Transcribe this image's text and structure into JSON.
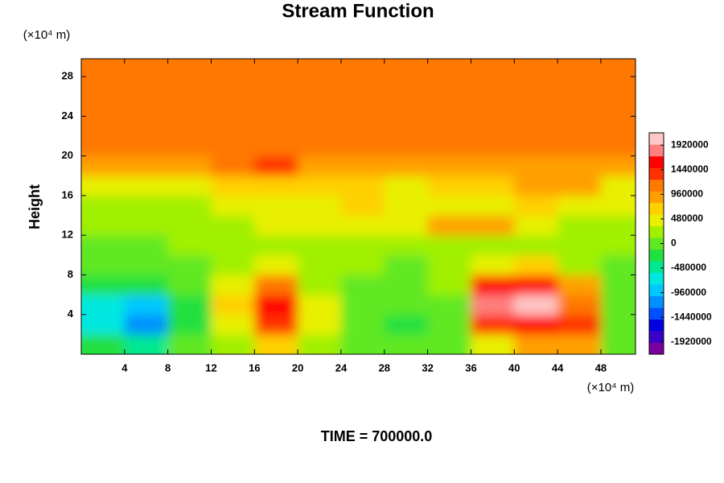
{
  "chart_data": {
    "type": "contour",
    "title": "Stream Function",
    "ylabel": "Height",
    "yunit": "(×10⁴ m)",
    "xunit": "(×10⁴ m)",
    "footer": "TIME = 700000.0",
    "xlim": [
      0,
      51.2
    ],
    "ylim": [
      0,
      29.8
    ],
    "xticks": [
      4,
      8,
      12,
      16,
      20,
      24,
      28,
      32,
      36,
      40,
      44,
      48
    ],
    "yticks": [
      4,
      8,
      12,
      16,
      20,
      24,
      28
    ],
    "x": [
      2,
      6,
      10,
      14,
      18,
      22,
      26,
      30,
      34,
      38,
      42,
      46,
      50
    ],
    "y": [
      1,
      3,
      5,
      7,
      9,
      11,
      13,
      15,
      17,
      19,
      21,
      23,
      25,
      27,
      29
    ],
    "z": [
      [
        -300000,
        -500000,
        -100000,
        200000,
        600000,
        200000,
        100000,
        -100000,
        100000,
        500000,
        800000,
        900000,
        100000
      ],
      [
        -700000,
        -1100000,
        -300000,
        500000,
        1400000,
        400000,
        100000,
        -200000,
        0,
        1300000,
        1700000,
        1400000,
        0
      ],
      [
        -600000,
        -1000000,
        -200000,
        600000,
        1500000,
        400000,
        0,
        -100000,
        100000,
        1800000,
        2000000,
        1200000,
        -100000
      ],
      [
        -200000,
        -300000,
        0,
        500000,
        1200000,
        300000,
        100000,
        0,
        300000,
        1500000,
        1600000,
        900000,
        0
      ],
      [
        0,
        0,
        100000,
        300000,
        500000,
        200000,
        200000,
        100000,
        200000,
        500000,
        600000,
        300000,
        100000
      ],
      [
        100000,
        100000,
        200000,
        200000,
        300000,
        300000,
        300000,
        200000,
        300000,
        300000,
        300000,
        200000,
        200000
      ],
      [
        200000,
        200000,
        300000,
        300000,
        400000,
        400000,
        400000,
        500000,
        800000,
        1000000,
        500000,
        300000,
        300000
      ],
      [
        300000,
        300000,
        200000,
        400000,
        500000,
        500000,
        600000,
        400000,
        400000,
        500000,
        600000,
        500000,
        400000
      ],
      [
        500000,
        400000,
        400000,
        600000,
        700000,
        700000,
        600000,
        500000,
        600000,
        700000,
        900000,
        800000,
        500000
      ],
      [
        800000,
        800000,
        800000,
        1100000,
        1300000,
        1000000,
        800000,
        800000,
        800000,
        800000,
        900000,
        900000,
        800000
      ],
      [
        1150000,
        1150000,
        1150000,
        1150000,
        1150000,
        1150000,
        1150000,
        1150000,
        1150000,
        1150000,
        1150000,
        1150000,
        1150000
      ],
      [
        1150000,
        1150000,
        1150000,
        1150000,
        1150000,
        1150000,
        1150000,
        1150000,
        1150000,
        1150000,
        1150000,
        1150000,
        1150000
      ],
      [
        1150000,
        1150000,
        1150000,
        1150000,
        1150000,
        1150000,
        1150000,
        1150000,
        1150000,
        1150000,
        1150000,
        1150000,
        1150000
      ],
      [
        1150000,
        1150000,
        1150000,
        1150000,
        1150000,
        1150000,
        1150000,
        1150000,
        1150000,
        1150000,
        1150000,
        1150000,
        1150000
      ],
      [
        1150000,
        1150000,
        1150000,
        1150000,
        1150000,
        1150000,
        1150000,
        1150000,
        1150000,
        1150000,
        1150000,
        1150000,
        1150000
      ]
    ],
    "zlim": [
      -2160000,
      2160000
    ],
    "zticks": [
      -1920000,
      -1440000,
      -960000,
      -480000,
      0,
      480000,
      960000,
      1440000,
      1920000
    ],
    "colors": [
      "#7a00a0",
      "#3a00c8",
      "#0000e0",
      "#0050ff",
      "#0090ff",
      "#00c8ff",
      "#00e8e0",
      "#00e890",
      "#20e040",
      "#60e820",
      "#a0f000",
      "#e8f000",
      "#ffd000",
      "#ffa000",
      "#ff7800",
      "#ff3000",
      "#ff0000",
      "#ff8080",
      "#ffc8c8"
    ]
  }
}
